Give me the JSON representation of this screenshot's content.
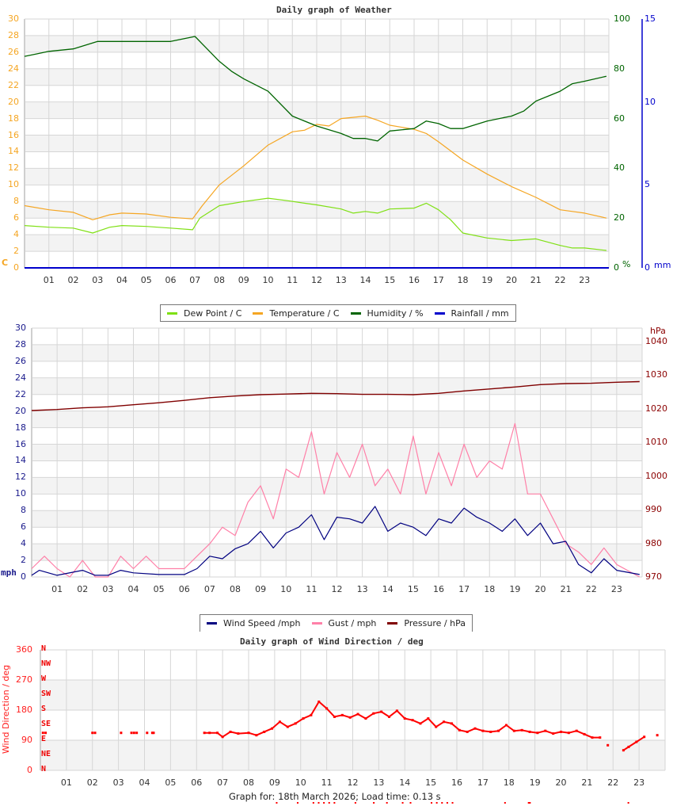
{
  "chart_data": [
    {
      "type": "line",
      "title": "Daily graph of Weather",
      "xlabel": "",
      "x_ticks": [
        "01",
        "02",
        "03",
        "04",
        "05",
        "06",
        "07",
        "08",
        "09",
        "10",
        "11",
        "12",
        "13",
        "14",
        "15",
        "16",
        "17",
        "18",
        "19",
        "20",
        "21",
        "22",
        "23"
      ],
      "x_range_hours": [
        0,
        24
      ],
      "y_axes": [
        {
          "side": "left",
          "unit": "C",
          "ticks": [
            0,
            2,
            4,
            6,
            8,
            10,
            12,
            14,
            16,
            18,
            20,
            22,
            24,
            26,
            28,
            30
          ],
          "range": [
            0,
            30
          ],
          "color": "#f5a623"
        },
        {
          "side": "right",
          "unit": "%",
          "ticks": [
            0,
            20,
            40,
            60,
            80,
            100
          ],
          "range": [
            0,
            100
          ],
          "color": "#006400"
        },
        {
          "side": "right2",
          "unit": "mm",
          "ticks": [
            0,
            5,
            10,
            15
          ],
          "range": [
            0,
            15
          ],
          "color": "#0000cc"
        }
      ],
      "grid": true,
      "legend_position": "bottom",
      "series": [
        {
          "name": "Dew Point / C",
          "color": "#7fe014",
          "axis": "C",
          "x": [
            0,
            1,
            2,
            2.8,
            3.5,
            4,
            5,
            6,
            6.9,
            7.2,
            8,
            9,
            10,
            10.8,
            11.5,
            12,
            13,
            13.5,
            14,
            14.5,
            15,
            16,
            16.5,
            17,
            17.5,
            18,
            19,
            20,
            21,
            22,
            22.5,
            23,
            23.9
          ],
          "values": [
            5.1,
            4.9,
            4.8,
            4.2,
            4.9,
            5.1,
            5.0,
            4.8,
            4.6,
            6.0,
            7.5,
            8.0,
            8.4,
            8.1,
            7.8,
            7.6,
            7.1,
            6.6,
            6.8,
            6.6,
            7.1,
            7.2,
            7.8,
            7.0,
            5.8,
            4.2,
            3.6,
            3.3,
            3.5,
            2.7,
            2.4,
            2.4,
            2.1
          ]
        },
        {
          "name": "Temperature / C",
          "color": "#f5a623",
          "axis": "C",
          "x": [
            0,
            1,
            2,
            2.8,
            3.5,
            4,
            5,
            6,
            6.9,
            7.3,
            8,
            9,
            10,
            11,
            11.5,
            12,
            12.5,
            13,
            14,
            14.5,
            15,
            16,
            16.5,
            17,
            18,
            19,
            20,
            21,
            22,
            22.5,
            23,
            23.9
          ],
          "values": [
            7.5,
            7.0,
            6.7,
            5.8,
            6.4,
            6.6,
            6.5,
            6.1,
            5.9,
            7.5,
            10.0,
            12.3,
            14.8,
            16.4,
            16.6,
            17.3,
            17.1,
            18.0,
            18.3,
            17.8,
            17.2,
            16.7,
            16.2,
            15.2,
            13.0,
            11.3,
            9.8,
            8.5,
            7.0,
            6.8,
            6.6,
            6.0
          ]
        },
        {
          "name": "Humidity / %",
          "color": "#006400",
          "axis": "%",
          "x": [
            0,
            0.5,
            1,
            2,
            3,
            4,
            5,
            6,
            7,
            7.5,
            8,
            8.5,
            9,
            10,
            11,
            12,
            13,
            13.5,
            14,
            14.5,
            15,
            16,
            16.5,
            17,
            17.5,
            18,
            19,
            20,
            20.5,
            21,
            22,
            22.5,
            23,
            23.9
          ],
          "values": [
            85,
            86,
            87,
            88,
            91,
            91,
            91,
            91,
            93,
            88,
            83,
            79,
            76,
            71,
            61,
            57,
            54,
            52,
            52,
            51,
            55,
            56,
            59,
            58,
            56,
            56,
            59,
            61,
            63,
            67,
            71,
            74,
            75,
            77
          ]
        },
        {
          "name": "Rainfall / mm",
          "color": "#0000cc",
          "axis": "mm",
          "x": [
            0,
            23.9
          ],
          "values": [
            0,
            0
          ]
        }
      ]
    },
    {
      "type": "line",
      "title": "Daily graph of Wind",
      "x_ticks": [
        "01",
        "02",
        "03",
        "04",
        "05",
        "06",
        "07",
        "08",
        "09",
        "10",
        "11",
        "12",
        "13",
        "14",
        "15",
        "16",
        "17",
        "18",
        "19",
        "20",
        "21",
        "22",
        "23"
      ],
      "x_range_hours": [
        0,
        24
      ],
      "y_axes": [
        {
          "side": "left",
          "unit": "mph",
          "ticks": [
            0,
            2,
            4,
            6,
            8,
            10,
            12,
            14,
            16,
            18,
            20,
            22,
            24,
            26,
            28,
            30
          ],
          "range": [
            0,
            30
          ],
          "color": "#1a1a8c"
        },
        {
          "side": "right",
          "unit": "hPa",
          "ticks": [
            970,
            980,
            990,
            1000,
            1010,
            1020,
            1030,
            1040
          ],
          "range": [
            970,
            1044
          ],
          "color": "#8b0000"
        }
      ],
      "grid": true,
      "legend_position": "bottom",
      "series": [
        {
          "name": "Wind Speed /mph",
          "color": "#000080",
          "axis": "mph",
          "x": [
            0,
            0.3,
            1,
            2,
            2.5,
            3,
            3.5,
            4,
            5,
            6,
            6.5,
            7,
            7.5,
            8,
            8.5,
            9,
            9.5,
            10,
            10.5,
            11,
            11.5,
            12,
            12.5,
            13,
            13.5,
            14,
            14.5,
            15,
            15.5,
            16,
            16.5,
            17,
            17.5,
            18,
            18.5,
            19,
            19.5,
            20,
            20.5,
            21,
            21.5,
            22,
            22.5,
            23,
            23.9
          ],
          "values": [
            0.2,
            0.8,
            0.2,
            0.8,
            0.2,
            0.2,
            0.8,
            0.5,
            0.3,
            0.3,
            1,
            2.5,
            2.2,
            3.4,
            4,
            5.5,
            3.5,
            5.3,
            6,
            7.5,
            4.5,
            7.2,
            7,
            6.5,
            8.5,
            5.5,
            6.5,
            6,
            5,
            7,
            6.5,
            8.3,
            7.2,
            6.5,
            5.5,
            7,
            5,
            6.5,
            4,
            4.3,
            1.5,
            0.5,
            2.2,
            0.8,
            0.3
          ]
        },
        {
          "name": "Gust / mph",
          "color": "#ff80a8",
          "axis": "mph",
          "x": [
            0,
            0.5,
            1,
            1.5,
            2,
            2.5,
            3,
            3.5,
            4,
            4.5,
            5,
            5.5,
            6,
            6.5,
            7,
            7.5,
            8,
            8.5,
            9,
            9.5,
            10,
            10.5,
            11,
            11.5,
            12,
            12.5,
            13,
            13.5,
            14,
            14.5,
            15,
            15.5,
            16,
            16.5,
            17,
            17.5,
            18,
            18.5,
            19,
            19.5,
            20,
            20.5,
            21,
            21.5,
            22,
            22.5,
            23,
            23.9
          ],
          "values": [
            1,
            2.5,
            1,
            0,
            2,
            0,
            0,
            2.5,
            1,
            2.5,
            1,
            1,
            1,
            2.5,
            4,
            6,
            5,
            9,
            11,
            7,
            13,
            12,
            17.5,
            10,
            15,
            12,
            16,
            11,
            13,
            10,
            17,
            10,
            15,
            11,
            16,
            12,
            14,
            13,
            18.5,
            10,
            10,
            7,
            4,
            3,
            1.5,
            3.5,
            1.5,
            0
          ]
        },
        {
          "name": "Pressure / hPa",
          "color": "#800000",
          "axis": "hPa",
          "x": [
            0,
            1,
            2,
            3,
            4,
            5,
            6,
            7,
            8,
            9,
            10,
            11,
            12,
            13,
            14,
            15,
            16,
            17,
            18,
            19,
            20,
            21,
            22,
            23,
            23.9
          ],
          "values": [
            1019.5,
            1019.8,
            1020.3,
            1020.6,
            1021.2,
            1021.8,
            1022.5,
            1023.3,
            1023.8,
            1024.2,
            1024.4,
            1024.6,
            1024.5,
            1024.3,
            1024.3,
            1024.2,
            1024.6,
            1025.3,
            1025.9,
            1026.5,
            1027.2,
            1027.5,
            1027.6,
            1027.9,
            1028.1
          ]
        }
      ]
    },
    {
      "type": "scatter",
      "title": "Daily graph of Wind Direction / deg",
      "ylabel": "Wind Direction / deg",
      "x_ticks": [
        "01",
        "02",
        "03",
        "04",
        "05",
        "06",
        "07",
        "08",
        "09",
        "10",
        "11",
        "12",
        "13",
        "14",
        "15",
        "16",
        "17",
        "18",
        "19",
        "20",
        "21",
        "22",
        "23"
      ],
      "y_axes": [
        {
          "side": "left",
          "ticks": [
            0,
            90,
            180,
            270,
            360
          ],
          "range": [
            0,
            360
          ],
          "color": "#ff0000"
        }
      ],
      "compass_labels": [
        "N",
        "NE",
        "E",
        "SE",
        "S",
        "SW",
        "W",
        "NW",
        "N"
      ],
      "grid": true,
      "series": [
        {
          "name": "Wind Direction / deg",
          "color": "#ff0000",
          "x": [
            0.1,
            0.2,
            2.0,
            2.1,
            3.1,
            3.5,
            3.6,
            3.7,
            4.1,
            4.3,
            4.35,
            6.3,
            6.5,
            6.8,
            7.0,
            7.3,
            7.6,
            8.0,
            8.3,
            8.6,
            8.9,
            9.2,
            9.5,
            9.8,
            10.1,
            10.4,
            10.7,
            11.0,
            11.3,
            11.6,
            11.9,
            12.2,
            12.5,
            12.8,
            13.1,
            13.4,
            13.7,
            14.0,
            14.3,
            14.6,
            14.9,
            15.2,
            15.5,
            15.8,
            16.1,
            16.4,
            16.7,
            17.0,
            17.3,
            17.6,
            17.9,
            18.2,
            18.5,
            18.8,
            19.1,
            19.4,
            19.7,
            20.0,
            20.3,
            20.6,
            20.9,
            21.2,
            21.5,
            21.8,
            22.4,
            22.6,
            22.9,
            23.2,
            23.7
          ],
          "values": [
            112,
            112,
            112,
            112,
            112,
            112,
            112,
            112,
            112,
            112,
            112,
            112,
            112,
            112,
            100,
            115,
            110,
            112,
            105,
            115,
            125,
            145,
            130,
            140,
            155,
            165,
            205,
            185,
            160,
            165,
            158,
            168,
            155,
            170,
            175,
            160,
            178,
            155,
            150,
            140,
            155,
            130,
            145,
            140,
            120,
            115,
            125,
            118,
            115,
            118,
            135,
            118,
            120,
            115,
            112,
            118,
            110,
            115,
            112,
            118,
            108,
            98,
            98,
            75,
            60,
            70,
            85,
            100,
            105
          ]
        }
      ]
    }
  ],
  "graph1": {
    "title": "Daily graph of Weather",
    "left_ticks": [
      "0",
      "2",
      "4",
      "6",
      "8",
      "10",
      "12",
      "14",
      "16",
      "18",
      "20",
      "22",
      "24",
      "26",
      "28",
      "30"
    ],
    "left_unit": "C",
    "right_ticks": [
      "0",
      "20",
      "40",
      "60",
      "80",
      "100"
    ],
    "right_unit": "%",
    "right2_ticks": [
      "0",
      "5",
      "10",
      "15"
    ],
    "right2_unit": "mm",
    "x_ticks": [
      "01",
      "02",
      "03",
      "04",
      "05",
      "06",
      "07",
      "08",
      "09",
      "10",
      "11",
      "12",
      "13",
      "14",
      "15",
      "16",
      "17",
      "18",
      "19",
      "20",
      "21",
      "22",
      "23"
    ],
    "legend": [
      {
        "label": "Dew Point / C",
        "color": "#7fe014"
      },
      {
        "label": "Temperature / C",
        "color": "#f5a623"
      },
      {
        "label": "Humidity / %",
        "color": "#006400"
      },
      {
        "label": "Rainfall / mm",
        "color": "#0000cc"
      }
    ]
  },
  "graph2": {
    "left_ticks": [
      "0",
      "2",
      "4",
      "6",
      "8",
      "10",
      "12",
      "14",
      "16",
      "18",
      "20",
      "22",
      "24",
      "26",
      "28",
      "30"
    ],
    "left_unit": "mph",
    "right_ticks": [
      "970",
      "980",
      "990",
      "1000",
      "1010",
      "1020",
      "1030",
      "1040"
    ],
    "right_unit": "hPa",
    "x_ticks": [
      "01",
      "02",
      "03",
      "04",
      "05",
      "06",
      "07",
      "08",
      "09",
      "10",
      "11",
      "12",
      "13",
      "14",
      "15",
      "16",
      "17",
      "18",
      "19",
      "20",
      "21",
      "22",
      "23"
    ],
    "legend": [
      {
        "label": "Wind Speed /mph",
        "color": "#000080"
      },
      {
        "label": "Gust / mph",
        "color": "#ff80a8"
      },
      {
        "label": "Pressure / hPa",
        "color": "#800000"
      }
    ]
  },
  "graph3": {
    "title": "Daily graph of Wind Direction / deg",
    "ylabel": "Wind Direction / deg",
    "left_ticks": [
      "0",
      "90",
      "180",
      "270",
      "360"
    ],
    "compass": [
      "N",
      "NE",
      "E",
      "SE",
      "S",
      "SW",
      "W",
      "NW",
      "N"
    ],
    "x_ticks": [
      "01",
      "02",
      "03",
      "04",
      "05",
      "06",
      "07",
      "08",
      "09",
      "10",
      "11",
      "12",
      "13",
      "14",
      "15",
      "16",
      "17",
      "18",
      "19",
      "20",
      "21",
      "22",
      "23"
    ]
  },
  "footer": {
    "text": "Graph for: 18th March 2026; Load time: 0.13 s"
  }
}
